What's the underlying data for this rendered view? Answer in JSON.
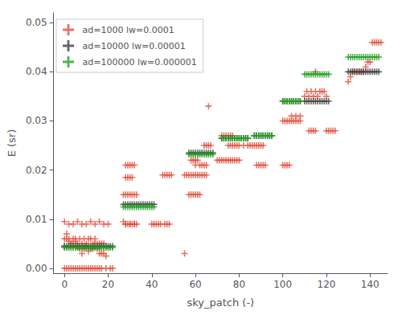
{
  "chart_data": {
    "type": "scatter",
    "xlabel": "sky_patch (-)",
    "ylabel": "E (sr)",
    "xlim": [
      -5,
      148
    ],
    "ylim": [
      -0.001,
      0.052
    ],
    "xticks": [
      0,
      20,
      40,
      60,
      80,
      100,
      120,
      140
    ],
    "yticks": [
      {
        "value": 0,
        "label": "0.00"
      },
      0.01,
      0.02,
      0.03,
      0.04,
      0.05
    ],
    "grid": false,
    "legend": "upper left",
    "marker": "+",
    "series": [
      {
        "name": "ad=1000 lw=0.0001",
        "color": "#e05040",
        "x": [
          0,
          1,
          2,
          3,
          4,
          5,
          6,
          7,
          8,
          9,
          10,
          11,
          12,
          13,
          14,
          15,
          16,
          17,
          18,
          19,
          0,
          1,
          2,
          3,
          4,
          5,
          6,
          7,
          8,
          9,
          10,
          11,
          12,
          13,
          14,
          15,
          16,
          17,
          18,
          0,
          1,
          2,
          3,
          4,
          5,
          6,
          7,
          8,
          9,
          10,
          11,
          12,
          13,
          14,
          15,
          16,
          17,
          0,
          2,
          4,
          6,
          8,
          10,
          12,
          14,
          16,
          18,
          20,
          19,
          21,
          22,
          27,
          28,
          29,
          30,
          31,
          32,
          33,
          27,
          28,
          29,
          30,
          31,
          32,
          33,
          28,
          29,
          30,
          31,
          32,
          28,
          30,
          32,
          28,
          29,
          30,
          31,
          40,
          41,
          42,
          43,
          44,
          45,
          46,
          47,
          48,
          49,
          46,
          47,
          48,
          55,
          56,
          57,
          58,
          59,
          60,
          61,
          62,
          63,
          64,
          65,
          57,
          58,
          59,
          60,
          61,
          62,
          58,
          59,
          60,
          61,
          60,
          62,
          63,
          64,
          65,
          64,
          65,
          66,
          67,
          70,
          71,
          72,
          73,
          74,
          75,
          76,
          77,
          78,
          79,
          80,
          72,
          73,
          74,
          75,
          76,
          77,
          75,
          76,
          77,
          78,
          79,
          80,
          82,
          84,
          85,
          86,
          87,
          88,
          89,
          90,
          91,
          88,
          89,
          90,
          91,
          92,
          100,
          101,
          102,
          103,
          104,
          105,
          106,
          107,
          108,
          100,
          101,
          102,
          103,
          104,
          106,
          108,
          110,
          111,
          112,
          113,
          114,
          115,
          116,
          117,
          118,
          119,
          120,
          112,
          113,
          114,
          115,
          120,
          121,
          122,
          123,
          124,
          130,
          131,
          132,
          133,
          134,
          135,
          136,
          137,
          138,
          139,
          140,
          141,
          142,
          143,
          144,
          145,
          115,
          55,
          66
        ],
        "values": [
          0.0045,
          0.006,
          0.0055,
          0.005,
          0.005,
          0.006,
          0.0045,
          0.004,
          0.003,
          0.004,
          0.0045,
          0.0035,
          0.004,
          0.004,
          0.005,
          0.004,
          0.003,
          0.003,
          0.003,
          0.0025,
          0.006,
          0.007,
          0.006,
          0.005,
          0.006,
          0.0055,
          0.005,
          0.006,
          0.005,
          0.006,
          0.005,
          0.006,
          0.006,
          0.005,
          0.006,
          0.005,
          0.005,
          0.005,
          0.005,
          0.0,
          0.0,
          0.0,
          0.0,
          0.0,
          0.0,
          0.0,
          0.0,
          0.0,
          0.0,
          0.0,
          0.0,
          0.0,
          0.0,
          0.0,
          0.0,
          0.0,
          0.0,
          0.0095,
          0.009,
          0.009,
          0.0095,
          0.009,
          0.009,
          0.0095,
          0.009,
          0.0095,
          0.009,
          0.009,
          0.0,
          0.0,
          0.0,
          0.015,
          0.015,
          0.015,
          0.015,
          0.015,
          0.015,
          0.015,
          0.0095,
          0.009,
          0.009,
          0.009,
          0.009,
          0.009,
          0.009,
          0.021,
          0.021,
          0.021,
          0.021,
          0.021,
          0.009,
          0.009,
          0.009,
          0.0185,
          0.0185,
          0.0185,
          0.0185,
          0.009,
          0.009,
          0.009,
          0.009,
          0.009,
          0.019,
          0.019,
          0.019,
          0.019,
          0.019,
          0.009,
          0.009,
          0.009,
          0.019,
          0.019,
          0.019,
          0.019,
          0.019,
          0.019,
          0.019,
          0.019,
          0.019,
          0.019,
          0.019,
          0.015,
          0.015,
          0.015,
          0.015,
          0.015,
          0.015,
          0.022,
          0.022,
          0.022,
          0.022,
          0.021,
          0.021,
          0.021,
          0.021,
          0.021,
          0.025,
          0.025,
          0.025,
          0.025,
          0.022,
          0.022,
          0.022,
          0.022,
          0.022,
          0.022,
          0.022,
          0.022,
          0.022,
          0.022,
          0.022,
          0.027,
          0.027,
          0.027,
          0.027,
          0.027,
          0.027,
          0.025,
          0.025,
          0.025,
          0.025,
          0.025,
          0.025,
          0.025,
          0.025,
          0.025,
          0.025,
          0.025,
          0.025,
          0.025,
          0.025,
          0.025,
          0.021,
          0.021,
          0.021,
          0.021,
          0.021,
          0.03,
          0.03,
          0.03,
          0.03,
          0.03,
          0.03,
          0.03,
          0.03,
          0.03,
          0.021,
          0.021,
          0.021,
          0.021,
          0.031,
          0.031,
          0.031,
          0.035,
          0.036,
          0.035,
          0.036,
          0.035,
          0.036,
          0.035,
          0.036,
          0.036,
          0.036,
          0.035,
          0.028,
          0.028,
          0.028,
          0.028,
          0.028,
          0.028,
          0.028,
          0.028,
          0.028,
          0.038,
          0.039,
          0.04,
          0.04,
          0.04,
          0.04,
          0.04,
          0.04,
          0.041,
          0.042,
          0.042,
          0.046,
          0.046,
          0.046,
          0.046,
          0.046,
          0.04,
          0.003,
          0.033
        ]
      },
      {
        "name": "ad=10000 lw=0.00001",
        "color": "#404040",
        "x": [
          0,
          1,
          2,
          3,
          4,
          5,
          6,
          7,
          8,
          9,
          10,
          11,
          12,
          13,
          14,
          15,
          16,
          17,
          18,
          19,
          20,
          21,
          22,
          27,
          28,
          29,
          30,
          31,
          32,
          33,
          34,
          35,
          36,
          37,
          38,
          39,
          40,
          41,
          57,
          58,
          59,
          60,
          61,
          62,
          63,
          64,
          65,
          66,
          67,
          68,
          72,
          73,
          74,
          75,
          76,
          77,
          78,
          79,
          80,
          81,
          82,
          83,
          84,
          87,
          88,
          89,
          90,
          91,
          92,
          93,
          94,
          95,
          100,
          101,
          102,
          103,
          104,
          105,
          106,
          107,
          108,
          110,
          111,
          112,
          113,
          114,
          115,
          116,
          117,
          118,
          119,
          120,
          121,
          130,
          131,
          132,
          133,
          134,
          135,
          136,
          137,
          138,
          139,
          140,
          141,
          142,
          143,
          144
        ],
        "values": [
          0.0045,
          0.0045,
          0.0045,
          0.0045,
          0.0045,
          0.0045,
          0.0045,
          0.0045,
          0.0045,
          0.0045,
          0.0045,
          0.0045,
          0.0045,
          0.0045,
          0.0045,
          0.0045,
          0.0045,
          0.0045,
          0.0045,
          0.0045,
          0.0045,
          0.0045,
          0.0045,
          0.013,
          0.013,
          0.013,
          0.013,
          0.013,
          0.013,
          0.013,
          0.013,
          0.013,
          0.013,
          0.013,
          0.013,
          0.013,
          0.013,
          0.013,
          0.0235,
          0.0235,
          0.0235,
          0.0235,
          0.0235,
          0.0235,
          0.0235,
          0.0235,
          0.0235,
          0.0235,
          0.0235,
          0.0235,
          0.0265,
          0.0265,
          0.0265,
          0.0265,
          0.0265,
          0.0265,
          0.0265,
          0.0265,
          0.0265,
          0.0265,
          0.0265,
          0.0265,
          0.0265,
          0.027,
          0.027,
          0.027,
          0.027,
          0.027,
          0.027,
          0.027,
          0.027,
          0.027,
          0.034,
          0.034,
          0.034,
          0.034,
          0.034,
          0.034,
          0.034,
          0.034,
          0.034,
          0.034,
          0.034,
          0.034,
          0.034,
          0.034,
          0.034,
          0.034,
          0.034,
          0.034,
          0.034,
          0.034,
          0.034,
          0.04,
          0.04,
          0.04,
          0.04,
          0.04,
          0.04,
          0.04,
          0.04,
          0.04,
          0.04,
          0.04,
          0.04,
          0.04,
          0.04,
          0.04
        ]
      },
      {
        "name": "ad=100000 lw=0.000001",
        "color": "#20a020",
        "x": [
          0,
          1,
          2,
          3,
          4,
          5,
          6,
          7,
          8,
          9,
          10,
          11,
          12,
          13,
          14,
          15,
          16,
          17,
          18,
          19,
          20,
          21,
          22,
          27,
          28,
          29,
          30,
          31,
          32,
          33,
          34,
          35,
          36,
          37,
          38,
          39,
          40,
          41,
          57,
          58,
          59,
          60,
          61,
          62,
          63,
          64,
          65,
          66,
          67,
          68,
          72,
          73,
          74,
          75,
          76,
          77,
          78,
          79,
          80,
          81,
          82,
          83,
          84,
          87,
          88,
          89,
          90,
          91,
          92,
          93,
          94,
          95,
          100,
          101,
          102,
          103,
          104,
          105,
          106,
          107,
          108,
          110,
          111,
          112,
          113,
          114,
          115,
          116,
          117,
          118,
          119,
          120,
          121,
          130,
          131,
          132,
          133,
          134,
          135,
          136,
          137,
          138,
          139,
          140,
          141,
          142,
          143,
          144
        ],
        "values": [
          0.0042,
          0.0042,
          0.0042,
          0.0042,
          0.0042,
          0.0042,
          0.0042,
          0.0042,
          0.0042,
          0.0042,
          0.0042,
          0.0042,
          0.0042,
          0.0042,
          0.0042,
          0.0042,
          0.0042,
          0.0042,
          0.0042,
          0.0042,
          0.0042,
          0.0042,
          0.0042,
          0.0125,
          0.0125,
          0.0125,
          0.0125,
          0.0125,
          0.0125,
          0.0125,
          0.0125,
          0.0125,
          0.0125,
          0.0125,
          0.0125,
          0.0125,
          0.0125,
          0.0125,
          0.0232,
          0.0232,
          0.0232,
          0.0232,
          0.0232,
          0.0232,
          0.0232,
          0.0232,
          0.0232,
          0.0232,
          0.0232,
          0.0232,
          0.0265,
          0.0265,
          0.0265,
          0.0265,
          0.0265,
          0.0265,
          0.0265,
          0.0265,
          0.0265,
          0.0265,
          0.0265,
          0.0265,
          0.0265,
          0.027,
          0.027,
          0.027,
          0.027,
          0.027,
          0.027,
          0.027,
          0.027,
          0.027,
          0.034,
          0.034,
          0.034,
          0.034,
          0.034,
          0.034,
          0.034,
          0.034,
          0.034,
          0.0395,
          0.0395,
          0.0395,
          0.0395,
          0.0395,
          0.0395,
          0.0395,
          0.0395,
          0.0395,
          0.0395,
          0.0395,
          0.0395,
          0.043,
          0.043,
          0.043,
          0.043,
          0.043,
          0.043,
          0.043,
          0.043,
          0.043,
          0.043,
          0.043,
          0.043,
          0.043,
          0.043,
          0.043
        ]
      }
    ]
  }
}
